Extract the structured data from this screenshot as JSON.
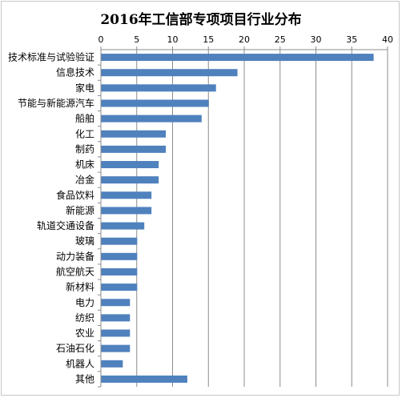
{
  "chart_data": {
    "type": "bar",
    "orientation": "horizontal",
    "title": "2016年工信部专项项目行业分布",
    "xlabel": "",
    "ylabel": "",
    "xlim": [
      0,
      40
    ],
    "xticks": [
      0,
      5,
      10,
      15,
      20,
      25,
      30,
      35,
      40
    ],
    "x_axis_position": "top",
    "grid": true,
    "legend": "none",
    "bar_color": "#4f81bd",
    "categories": [
      "技术标准与试验验证",
      "信息技术",
      "家电",
      "节能与新能源汽车",
      "船舶",
      "化工",
      "制药",
      "机床",
      "冶金",
      "食品饮料",
      "新能源",
      "轨道交通设备",
      "玻璃",
      "动力装备",
      "航空航天",
      "新材料",
      "电力",
      "纺织",
      "农业",
      "石油石化",
      "机器人",
      "其他"
    ],
    "values": [
      38,
      19,
      16,
      15,
      14,
      9,
      9,
      8,
      8,
      7,
      7,
      6,
      5,
      5,
      5,
      5,
      4,
      4,
      4,
      4,
      3,
      12
    ]
  }
}
